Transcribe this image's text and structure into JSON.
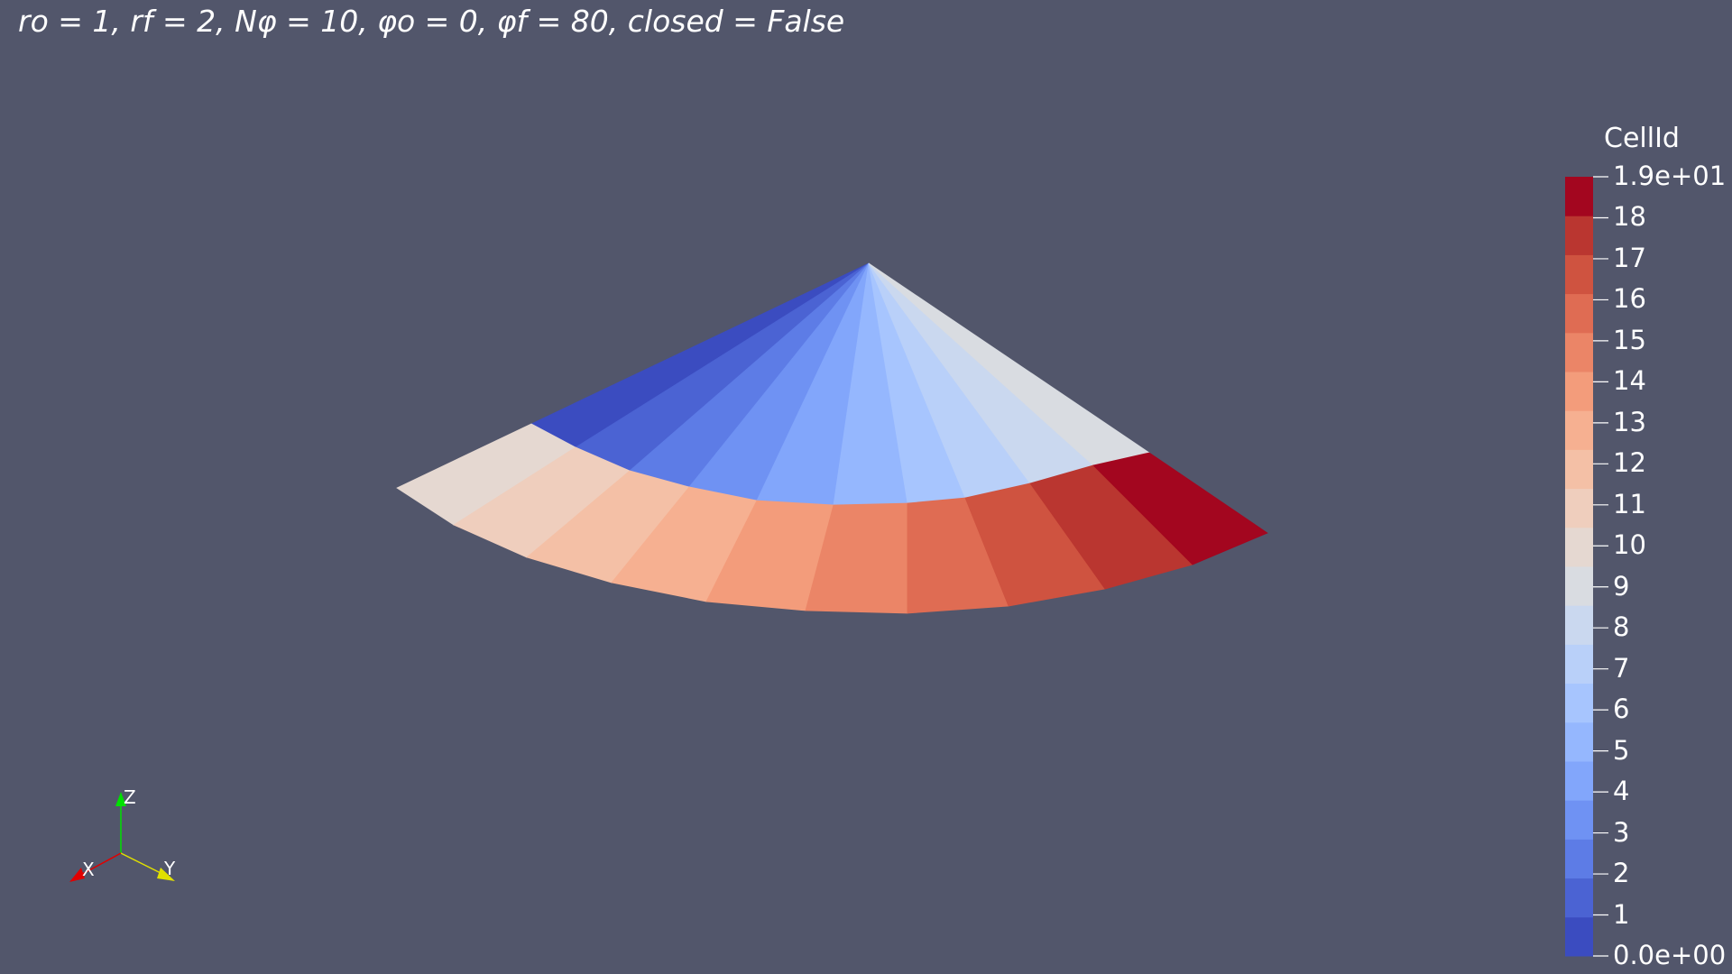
{
  "title": "ro = 1, rf = 2, Nφ = 10, φo = 0, φf = 80, closed = False",
  "scalar_bar": {
    "title": "CellId",
    "range": [
      0,
      19
    ],
    "colors": [
      "#3b4cc0",
      "#4b63d3",
      "#5d7ce6",
      "#6f92f3",
      "#82a6fb",
      "#95b7fe",
      "#a7c5fe",
      "#b9d0f9",
      "#cad8ef",
      "#d9dce1",
      "#e5d8d1",
      "#efcebd",
      "#f4c0a6",
      "#f6b091",
      "#f39c7b",
      "#eb8567",
      "#df6c53",
      "#cf5340",
      "#ba3630",
      "#a3061f"
    ],
    "ticks": [
      "1.9e+01",
      "18",
      "17",
      "16",
      "15",
      "14",
      "13",
      "12",
      "11",
      "10",
      "9",
      "8",
      "7",
      "6",
      "5",
      "4",
      "3",
      "2",
      "1",
      "0.0e+00"
    ]
  },
  "axes": {
    "x_label": "X",
    "y_label": "Y",
    "z_label": "Z"
  }
}
